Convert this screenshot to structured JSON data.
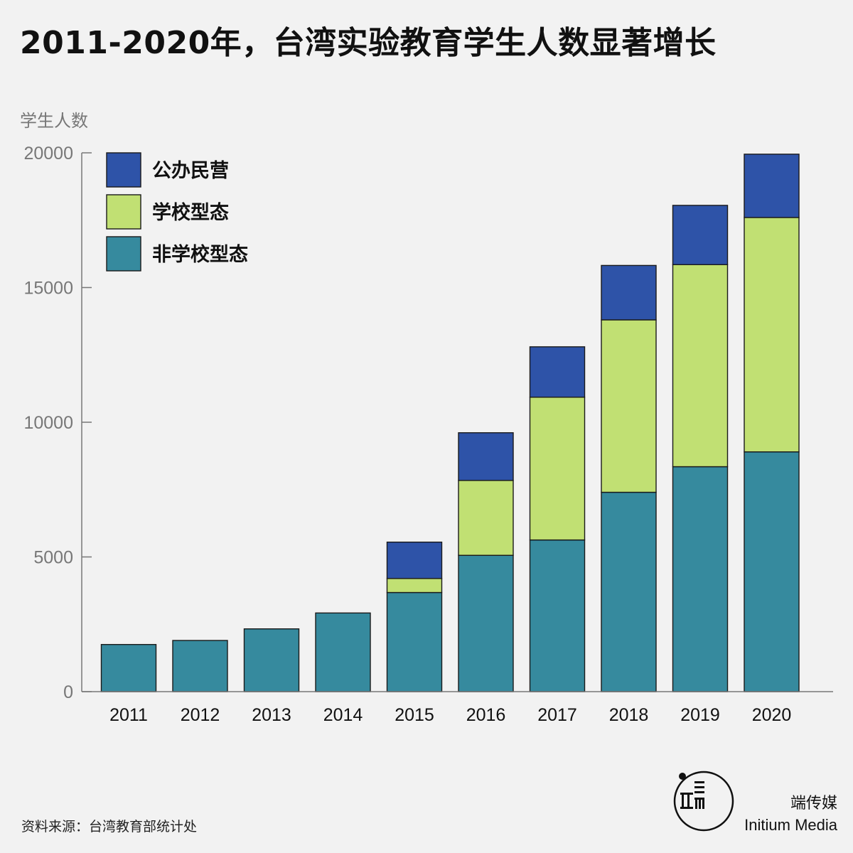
{
  "title": "2011-2020年，台湾实验教育学生人数显著增长",
  "source": "资料来源：台湾教育部统计处",
  "brand": {
    "name_zh": "端传媒",
    "name_en": "Initium Media",
    "logo_icon": "initium-logo-icon"
  },
  "colors": {
    "gongban": "#2e53a8",
    "xuexiao": "#c1e073",
    "feixuexiao": "#368a9e",
    "background": "#f2f2f2"
  },
  "chart_data": {
    "type": "bar",
    "stacked": true,
    "ylabel": "学生人数",
    "xlabel": "",
    "ylim": [
      0,
      20000
    ],
    "yticks": [
      0,
      5000,
      10000,
      15000,
      20000
    ],
    "categories": [
      "2011",
      "2012",
      "2013",
      "2014",
      "2015",
      "2016",
      "2017",
      "2018",
      "2019",
      "2020"
    ],
    "series": [
      {
        "name": "非学校型态",
        "color": "#368a9e",
        "values": [
          1750,
          1900,
          2330,
          2920,
          3680,
          5060,
          5630,
          7400,
          8350,
          8900
        ]
      },
      {
        "name": "学校型态",
        "color": "#c1e073",
        "values": [
          0,
          0,
          0,
          0,
          520,
          2780,
          5300,
          6400,
          7500,
          8700
        ]
      },
      {
        "name": "公办民营",
        "color": "#2e53a8",
        "values": [
          0,
          0,
          0,
          0,
          1350,
          1770,
          1870,
          2020,
          2200,
          2350
        ]
      }
    ],
    "legend": {
      "position": "top-left",
      "order": [
        "公办民营",
        "学校型态",
        "非学校型态"
      ]
    },
    "grid": false
  }
}
